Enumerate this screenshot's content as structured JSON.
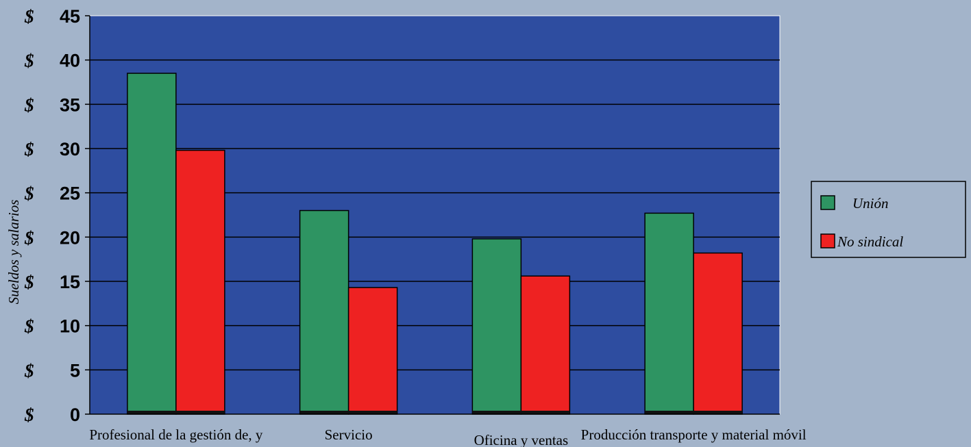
{
  "chart_data": {
    "type": "bar",
    "title": "",
    "xlabel": "",
    "ylabel": "Sueldos y salarios",
    "ylim": [
      0,
      45
    ],
    "y_ticks": [
      {
        "prefix": "$",
        "value": "0"
      },
      {
        "prefix": "$",
        "value": "5"
      },
      {
        "prefix": "$",
        "value": "10"
      },
      {
        "prefix": "$",
        "value": "15"
      },
      {
        "prefix": "$",
        "value": "20"
      },
      {
        "prefix": "$",
        "value": "25"
      },
      {
        "prefix": "$",
        "value": "30"
      },
      {
        "prefix": "$",
        "value": "35"
      },
      {
        "prefix": "$",
        "value": "40"
      },
      {
        "prefix": "$",
        "value": "45"
      }
    ],
    "categories": [
      "Profesional de la gestión de, y",
      "Servicio",
      "Oficina y ventas",
      "Producción transporte y material móvil"
    ],
    "series": [
      {
        "name": "Unión",
        "color": "#2e9462",
        "values": [
          38.5,
          23.0,
          19.8,
          22.7
        ]
      },
      {
        "name": "No sindical",
        "color": "#ee2222",
        "values": [
          29.8,
          14.3,
          15.6,
          18.2
        ]
      }
    ],
    "grid": true,
    "legend_position": "right",
    "plot_background": "#2e4da0",
    "page_background": "#a3b4ca"
  }
}
